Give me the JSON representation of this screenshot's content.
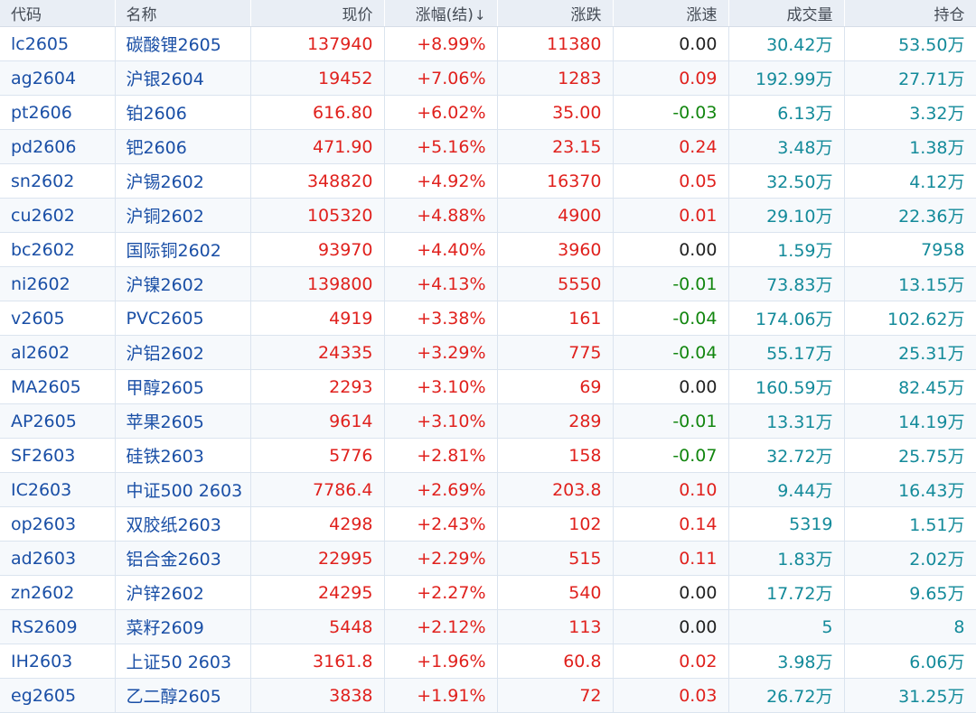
{
  "headers": {
    "code": "代码",
    "name": "名称",
    "price": "现价",
    "change_pct": "涨幅(结)",
    "sort_arrow": "↓",
    "change": "涨跌",
    "speed": "涨速",
    "volume": "成交量",
    "open_interest": "持仓"
  },
  "colors": {
    "up": "#e0211d",
    "down": "#12860f",
    "flat": "#222222",
    "code_name": "#1a4fa6",
    "volume": "#138a9a"
  },
  "rows": [
    {
      "code": "lc2605",
      "name": "碳酸锂2605",
      "price": "137940",
      "change_pct": "+8.99%",
      "change": "11380",
      "speed": "0.00",
      "volume": "30.42万",
      "open_interest": "53.50万"
    },
    {
      "code": "ag2604",
      "name": "沪银2604",
      "price": "19452",
      "change_pct": "+7.06%",
      "change": "1283",
      "speed": "0.09",
      "volume": "192.99万",
      "open_interest": "27.71万"
    },
    {
      "code": "pt2606",
      "name": "铂2606",
      "price": "616.80",
      "change_pct": "+6.02%",
      "change": "35.00",
      "speed": "-0.03",
      "volume": "6.13万",
      "open_interest": "3.32万"
    },
    {
      "code": "pd2606",
      "name": "钯2606",
      "price": "471.90",
      "change_pct": "+5.16%",
      "change": "23.15",
      "speed": "0.24",
      "volume": "3.48万",
      "open_interest": "1.38万"
    },
    {
      "code": "sn2602",
      "name": "沪锡2602",
      "price": "348820",
      "change_pct": "+4.92%",
      "change": "16370",
      "speed": "0.05",
      "volume": "32.50万",
      "open_interest": "4.12万"
    },
    {
      "code": "cu2602",
      "name": "沪铜2602",
      "price": "105320",
      "change_pct": "+4.88%",
      "change": "4900",
      "speed": "0.01",
      "volume": "29.10万",
      "open_interest": "22.36万"
    },
    {
      "code": "bc2602",
      "name": "国际铜2602",
      "price": "93970",
      "change_pct": "+4.40%",
      "change": "3960",
      "speed": "0.00",
      "volume": "1.59万",
      "open_interest": "7958"
    },
    {
      "code": "ni2602",
      "name": "沪镍2602",
      "price": "139800",
      "change_pct": "+4.13%",
      "change": "5550",
      "speed": "-0.01",
      "volume": "73.83万",
      "open_interest": "13.15万"
    },
    {
      "code": "v2605",
      "name": "PVC2605",
      "price": "4919",
      "change_pct": "+3.38%",
      "change": "161",
      "speed": "-0.04",
      "volume": "174.06万",
      "open_interest": "102.62万"
    },
    {
      "code": "al2602",
      "name": "沪铝2602",
      "price": "24335",
      "change_pct": "+3.29%",
      "change": "775",
      "speed": "-0.04",
      "volume": "55.17万",
      "open_interest": "25.31万"
    },
    {
      "code": "MA2605",
      "name": "甲醇2605",
      "price": "2293",
      "change_pct": "+3.10%",
      "change": "69",
      "speed": "0.00",
      "volume": "160.59万",
      "open_interest": "82.45万"
    },
    {
      "code": "AP2605",
      "name": "苹果2605",
      "price": "9614",
      "change_pct": "+3.10%",
      "change": "289",
      "speed": "-0.01",
      "volume": "13.31万",
      "open_interest": "14.19万"
    },
    {
      "code": "SF2603",
      "name": "硅铁2603",
      "price": "5776",
      "change_pct": "+2.81%",
      "change": "158",
      "speed": "-0.07",
      "volume": "32.72万",
      "open_interest": "25.75万"
    },
    {
      "code": "IC2603",
      "name": "中证500 2603",
      "price": "7786.4",
      "change_pct": "+2.69%",
      "change": "203.8",
      "speed": "0.10",
      "volume": "9.44万",
      "open_interest": "16.43万"
    },
    {
      "code": "op2603",
      "name": "双胶纸2603",
      "price": "4298",
      "change_pct": "+2.43%",
      "change": "102",
      "speed": "0.14",
      "volume": "5319",
      "open_interest": "1.51万"
    },
    {
      "code": "ad2603",
      "name": "铝合金2603",
      "price": "22995",
      "change_pct": "+2.29%",
      "change": "515",
      "speed": "0.11",
      "volume": "1.83万",
      "open_interest": "2.02万"
    },
    {
      "code": "zn2602",
      "name": "沪锌2602",
      "price": "24295",
      "change_pct": "+2.27%",
      "change": "540",
      "speed": "0.00",
      "volume": "17.72万",
      "open_interest": "9.65万"
    },
    {
      "code": "RS2609",
      "name": "菜籽2609",
      "price": "5448",
      "change_pct": "+2.12%",
      "change": "113",
      "speed": "0.00",
      "volume": "5",
      "open_interest": "8"
    },
    {
      "code": "IH2603",
      "name": "上证50 2603",
      "price": "3161.8",
      "change_pct": "+1.96%",
      "change": "60.8",
      "speed": "0.02",
      "volume": "3.98万",
      "open_interest": "6.06万"
    },
    {
      "code": "eg2605",
      "name": "乙二醇2605",
      "price": "3838",
      "change_pct": "+1.91%",
      "change": "72",
      "speed": "0.03",
      "volume": "26.72万",
      "open_interest": "31.25万"
    }
  ]
}
